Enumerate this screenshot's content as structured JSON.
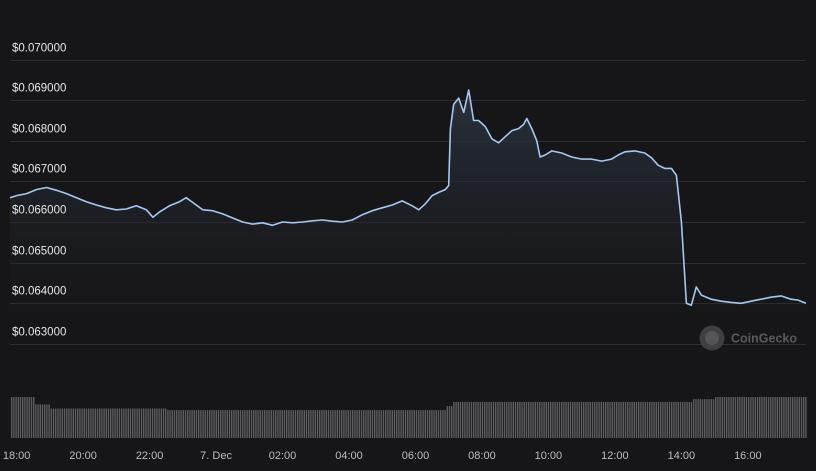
{
  "colors": {
    "background": "#161618",
    "line": "#a7c7ef",
    "area_top": "#2b3441",
    "grid": "#2e2e31",
    "volume": "#5d5d61",
    "watermark": "#5a5a5e"
  },
  "watermark": {
    "text": "CoinGecko",
    "icon": "gecko-logo-icon"
  },
  "chart_data": {
    "type": "area",
    "title": "",
    "xlabel": "",
    "ylabel": "",
    "ylim": [
      0.0628,
      0.0709
    ],
    "grid": true,
    "legend": "none",
    "y_ticks": [
      {
        "value": 0.07,
        "label": "$0.070000"
      },
      {
        "value": 0.069,
        "label": "$0.069000"
      },
      {
        "value": 0.068,
        "label": "$0.068000"
      },
      {
        "value": 0.067,
        "label": "$0.067000"
      },
      {
        "value": 0.066,
        "label": "$0.066000"
      },
      {
        "value": 0.065,
        "label": "$0.065000"
      },
      {
        "value": 0.064,
        "label": "$0.064000"
      },
      {
        "value": 0.063,
        "label": "$0.063000"
      }
    ],
    "x_axis": {
      "unit": "hours since 18:00 (6 Dec)",
      "range": [
        -0.2,
        23.75
      ],
      "ticks": [
        {
          "value": 0,
          "label": "18:00"
        },
        {
          "value": 2,
          "label": "20:00"
        },
        {
          "value": 4,
          "label": "22:00"
        },
        {
          "value": 6,
          "label": "7. Dec"
        },
        {
          "value": 8,
          "label": "02:00"
        },
        {
          "value": 10,
          "label": "04:00"
        },
        {
          "value": 12,
          "label": "06:00"
        },
        {
          "value": 14,
          "label": "08:00"
        },
        {
          "value": 16,
          "label": "10:00"
        },
        {
          "value": 18,
          "label": "12:00"
        },
        {
          "value": 20,
          "label": "14:00"
        },
        {
          "value": 22,
          "label": "16:00"
        }
      ]
    },
    "series": [
      {
        "points": [
          [
            -0.2,
            0.0666
          ],
          [
            0,
            0.06665
          ],
          [
            0.3,
            0.0667
          ],
          [
            0.6,
            0.0668
          ],
          [
            0.9,
            0.06685
          ],
          [
            1.2,
            0.06678
          ],
          [
            1.5,
            0.0667
          ],
          [
            1.8,
            0.0666
          ],
          [
            2.1,
            0.0665
          ],
          [
            2.4,
            0.06642
          ],
          [
            2.7,
            0.06635
          ],
          [
            3.0,
            0.0663
          ],
          [
            3.3,
            0.06632
          ],
          [
            3.6,
            0.0664
          ],
          [
            3.9,
            0.0663
          ],
          [
            4.1,
            0.06612
          ],
          [
            4.3,
            0.06625
          ],
          [
            4.6,
            0.0664
          ],
          [
            4.9,
            0.0665
          ],
          [
            5.1,
            0.0666
          ],
          [
            5.3,
            0.06648
          ],
          [
            5.6,
            0.0663
          ],
          [
            5.9,
            0.06628
          ],
          [
            6.2,
            0.0662
          ],
          [
            6.5,
            0.0661
          ],
          [
            6.8,
            0.066
          ],
          [
            7.1,
            0.06595
          ],
          [
            7.4,
            0.06598
          ],
          [
            7.7,
            0.06592
          ],
          [
            8.0,
            0.066
          ],
          [
            8.3,
            0.06598
          ],
          [
            8.6,
            0.066
          ],
          [
            8.9,
            0.06603
          ],
          [
            9.2,
            0.06605
          ],
          [
            9.5,
            0.06602
          ],
          [
            9.8,
            0.066
          ],
          [
            10.1,
            0.06605
          ],
          [
            10.4,
            0.06618
          ],
          [
            10.7,
            0.06628
          ],
          [
            11.0,
            0.06635
          ],
          [
            11.3,
            0.06642
          ],
          [
            11.6,
            0.06652
          ],
          [
            11.9,
            0.0664
          ],
          [
            12.1,
            0.0663
          ],
          [
            12.3,
            0.06645
          ],
          [
            12.5,
            0.06665
          ],
          [
            12.7,
            0.06673
          ],
          [
            12.9,
            0.0668
          ],
          [
            13.0,
            0.0669
          ],
          [
            13.05,
            0.0683
          ],
          [
            13.15,
            0.0689
          ],
          [
            13.3,
            0.06905
          ],
          [
            13.45,
            0.0687
          ],
          [
            13.6,
            0.06925
          ],
          [
            13.75,
            0.0685
          ],
          [
            13.9,
            0.0685
          ],
          [
            14.1,
            0.06835
          ],
          [
            14.3,
            0.06805
          ],
          [
            14.5,
            0.06795
          ],
          [
            14.7,
            0.0681
          ],
          [
            14.9,
            0.06825
          ],
          [
            15.1,
            0.0683
          ],
          [
            15.25,
            0.0684
          ],
          [
            15.35,
            0.06855
          ],
          [
            15.5,
            0.0683
          ],
          [
            15.65,
            0.068
          ],
          [
            15.75,
            0.0676
          ],
          [
            15.9,
            0.06765
          ],
          [
            16.1,
            0.06775
          ],
          [
            16.4,
            0.0677
          ],
          [
            16.7,
            0.0676
          ],
          [
            17.0,
            0.06755
          ],
          [
            17.3,
            0.06755
          ],
          [
            17.6,
            0.0675
          ],
          [
            17.9,
            0.06755
          ],
          [
            18.1,
            0.06765
          ],
          [
            18.3,
            0.06773
          ],
          [
            18.6,
            0.06775
          ],
          [
            18.9,
            0.0677
          ],
          [
            19.1,
            0.06758
          ],
          [
            19.3,
            0.0674
          ],
          [
            19.5,
            0.06732
          ],
          [
            19.7,
            0.06732
          ],
          [
            19.85,
            0.06715
          ],
          [
            20.0,
            0.066
          ],
          [
            20.15,
            0.064
          ],
          [
            20.3,
            0.06395
          ],
          [
            20.45,
            0.0644
          ],
          [
            20.6,
            0.0642
          ],
          [
            20.9,
            0.0641
          ],
          [
            21.2,
            0.06405
          ],
          [
            21.5,
            0.06402
          ],
          [
            21.8,
            0.064
          ],
          [
            22.1,
            0.06405
          ],
          [
            22.4,
            0.0641
          ],
          [
            22.7,
            0.06415
          ],
          [
            23.0,
            0.06418
          ],
          [
            23.3,
            0.0641
          ],
          [
            23.5,
            0.06408
          ],
          [
            23.75,
            0.064
          ]
        ]
      }
    ],
    "volume": {
      "x_range": [
        -0.2,
        23.75
      ],
      "levels": [
        {
          "from": -0.2,
          "to": 0.5,
          "value": 1.0
        },
        {
          "from": 0.5,
          "to": 1.0,
          "value": 0.82
        },
        {
          "from": 1.0,
          "to": 4.5,
          "value": 0.72
        },
        {
          "from": 4.5,
          "to": 12.9,
          "value": 0.68
        },
        {
          "from": 12.9,
          "to": 13.1,
          "value": 0.78
        },
        {
          "from": 13.1,
          "to": 20.3,
          "value": 0.88
        },
        {
          "from": 20.3,
          "to": 21.0,
          "value": 0.95
        },
        {
          "from": 21.0,
          "to": 23.75,
          "value": 1.0
        }
      ]
    }
  }
}
